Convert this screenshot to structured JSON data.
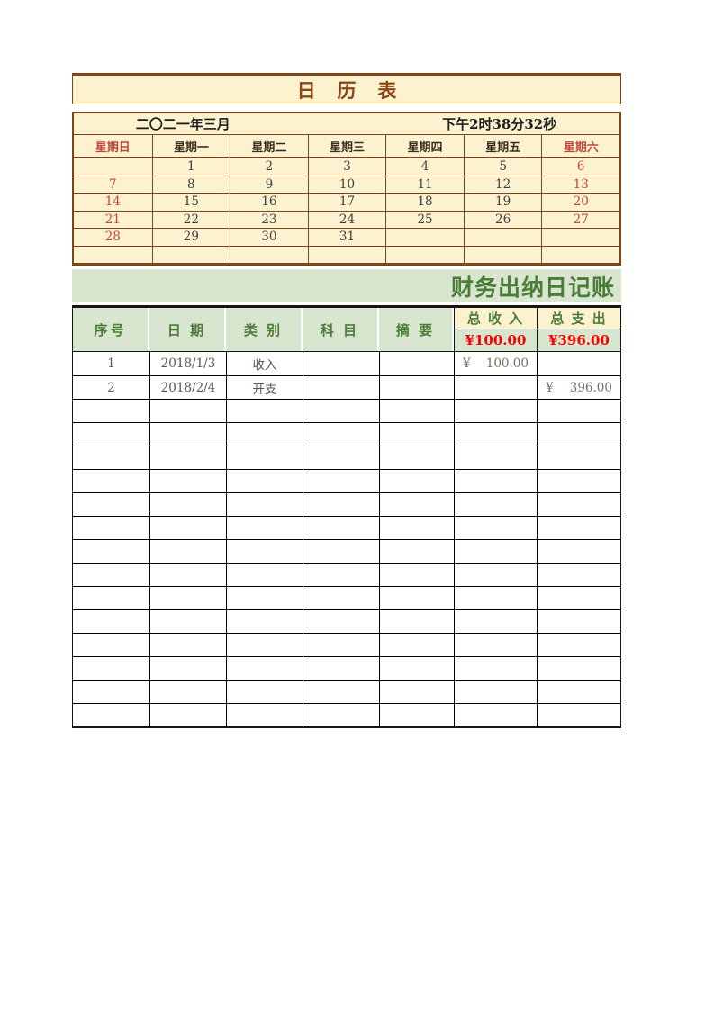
{
  "colors": {
    "cream": "#fcf2cf",
    "brown": "#7e4519",
    "title_brown": "#8a4513",
    "weekend_red": "#c3453a",
    "total_red": "#fb0000",
    "green_bg": "#d9e6cf",
    "green_text": "#4b7d38",
    "data_text": "#4d5e4a"
  },
  "calendar": {
    "title": "日 历 表",
    "month_label": "二〇二一年三月",
    "time_label": "下午2时38分32秒",
    "weekdays": [
      {
        "label": "星期日",
        "weekend": true
      },
      {
        "label": "星期一",
        "weekend": false
      },
      {
        "label": "星期二",
        "weekend": false
      },
      {
        "label": "星期三",
        "weekend": false
      },
      {
        "label": "星期四",
        "weekend": false
      },
      {
        "label": "星期五",
        "weekend": false
      },
      {
        "label": "星期六",
        "weekend": true
      }
    ],
    "weeks": [
      [
        "",
        "1",
        "2",
        "3",
        "4",
        "5",
        "6"
      ],
      [
        "7",
        "8",
        "9",
        "10",
        "11",
        "12",
        "13"
      ],
      [
        "14",
        "15",
        "16",
        "17",
        "18",
        "19",
        "20"
      ],
      [
        "21",
        "22",
        "23",
        "24",
        "25",
        "26",
        "27"
      ],
      [
        "28",
        "29",
        "30",
        "31",
        "",
        "",
        ""
      ],
      [
        "",
        "",
        "",
        "",
        "",
        "",
        ""
      ]
    ]
  },
  "journal": {
    "banner": "财务出纳日记账",
    "columns": [
      "序号",
      "日 期",
      "类 别",
      "科 目",
      "摘 要"
    ],
    "total_income_label": "总 收 入",
    "total_expense_label": "总 支 出",
    "total_income": "¥100.00",
    "total_expense": "¥396.00",
    "currency_symbol": "¥",
    "rows": [
      {
        "no": "1",
        "date": "2018/1/3",
        "category": "收入",
        "subject": "",
        "summary": "",
        "income": "100.00",
        "expense": ""
      },
      {
        "no": "2",
        "date": "2018/2/4",
        "category": "开支",
        "subject": "",
        "summary": "",
        "income": "",
        "expense": "396.00"
      }
    ],
    "empty_rows": 14
  }
}
